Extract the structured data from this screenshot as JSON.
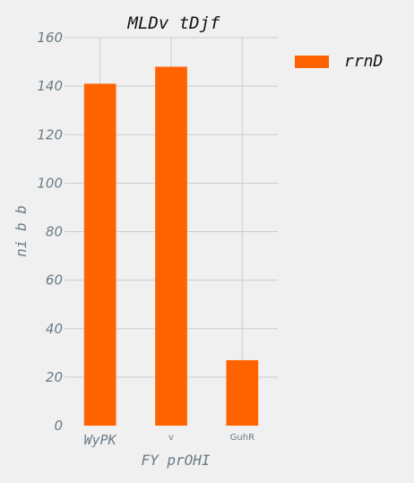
{
  "chart_data": {
    "type": "bar",
    "title": "MLDv tDjf",
    "xlabel": "FY prOHI",
    "ylabel": "ni b  b",
    "categories": [
      "WyPK",
      "v",
      "GuhR"
    ],
    "series": [
      {
        "name": "rrnD",
        "values": [
          141,
          148,
          27
        ],
        "color": "#ff6300"
      }
    ],
    "ylim": [
      0,
      160
    ],
    "yticks": [
      "0",
      "20",
      "40",
      "60",
      "80",
      "100",
      "120",
      "140",
      "160"
    ],
    "grid": true,
    "legend_position": "top-right"
  },
  "colors": {
    "background": "#f0f0f0",
    "grid": "#cbcbcb",
    "text_muted": "#6b7b87"
  }
}
